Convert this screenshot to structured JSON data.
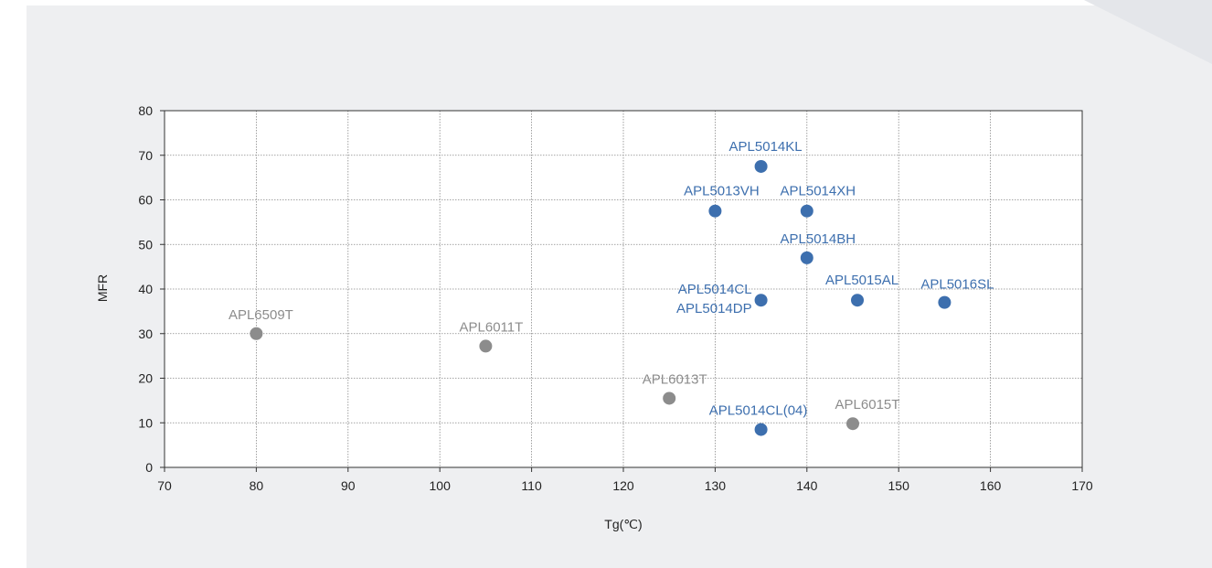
{
  "colors": {
    "panel_bg": "#eeeff1",
    "plot_bg": "#ffffff",
    "grid": "#888888",
    "axis_text": "#222222",
    "series_blue": "#3d6fae",
    "series_gray": "#8c8c8c"
  },
  "chart_data": {
    "type": "scatter",
    "xlabel": "Tg(℃)",
    "ylabel": "MFR",
    "xlim": [
      70,
      170
    ],
    "ylim": [
      0,
      80
    ],
    "xticks": [
      "70",
      "80",
      "90",
      "100",
      "110",
      "120",
      "130",
      "140",
      "150",
      "160",
      "170"
    ],
    "yticks": [
      "0",
      "10",
      "20",
      "30",
      "40",
      "50",
      "60",
      "70",
      "80"
    ],
    "grid": true,
    "legend": "none",
    "series": [
      {
        "color": "#3d6fae",
        "points": [
          {
            "label": "APL5014KL",
            "x": 135,
            "y": 67.5
          },
          {
            "label": "APL5013VH",
            "x": 130,
            "y": 57.5
          },
          {
            "label": "APL5014XH",
            "x": 140,
            "y": 57.5
          },
          {
            "label": "APL5014BH",
            "x": 140,
            "y": 47
          },
          {
            "label": "APL5014CL\nAPL5014DP",
            "x": 135,
            "y": 37.5
          },
          {
            "label": "APL5015AL",
            "x": 145.5,
            "y": 37.5
          },
          {
            "label": "APL5016SL",
            "x": 155,
            "y": 37
          },
          {
            "label": "APL5014CL(04)",
            "x": 135,
            "y": 8.5
          }
        ]
      },
      {
        "color": "#8c8c8c",
        "points": [
          {
            "label": "APL6509T",
            "x": 80,
            "y": 30
          },
          {
            "label": "APL6011T",
            "x": 105,
            "y": 27.2
          },
          {
            "label": "APL6013T",
            "x": 125,
            "y": 15.5
          },
          {
            "label": "APL6015T",
            "x": 145,
            "y": 9.8
          }
        ]
      }
    ]
  }
}
